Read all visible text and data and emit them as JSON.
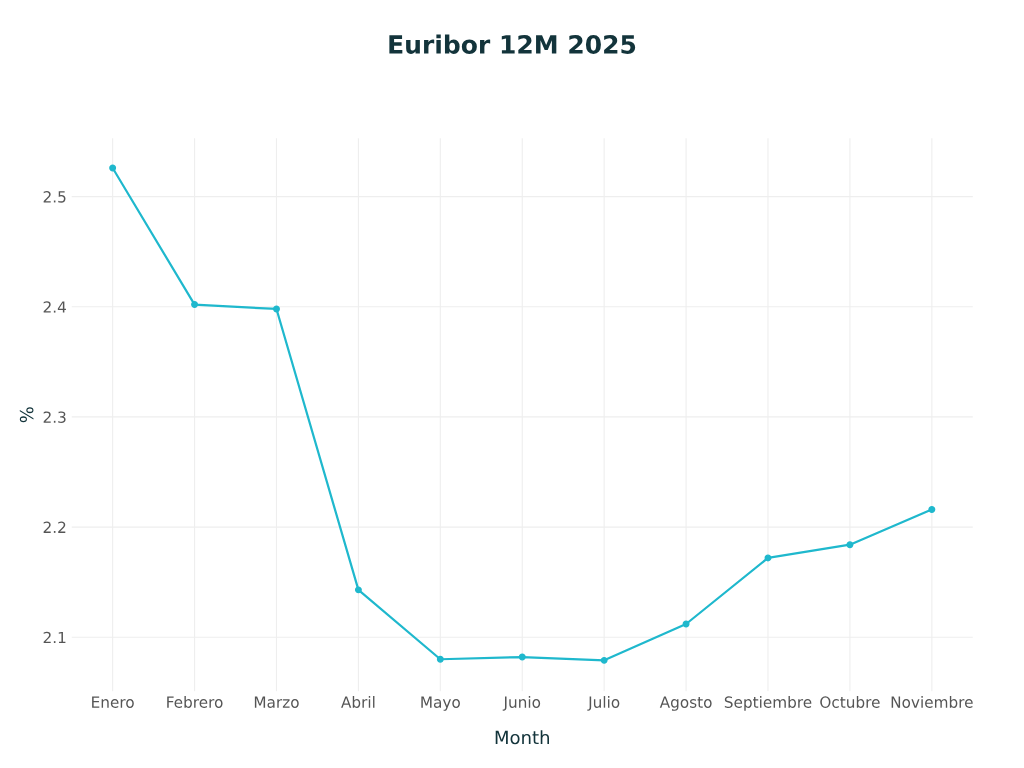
{
  "chart_data": {
    "type": "line",
    "title": "Euribor 12M 2025",
    "xlabel": "Month",
    "ylabel": "%",
    "categories": [
      "Enero",
      "Febrero",
      "Marzo",
      "Abril",
      "Mayo",
      "Junio",
      "Julio",
      "Agosto",
      "Septiembre",
      "Octubre",
      "Noviembre"
    ],
    "series": [
      {
        "color": "#1fb8cd",
        "values": [
          2.526,
          2.402,
          2.398,
          2.143,
          2.08,
          2.082,
          2.079,
          2.112,
          2.172,
          2.184,
          2.216
        ]
      }
    ],
    "ylim": [
      2.051,
      2.553
    ],
    "yticks": [
      2.1,
      2.2,
      2.3,
      2.4,
      2.5
    ],
    "grid": true,
    "marker": "circle",
    "line_style": "solid",
    "legend": false
  }
}
